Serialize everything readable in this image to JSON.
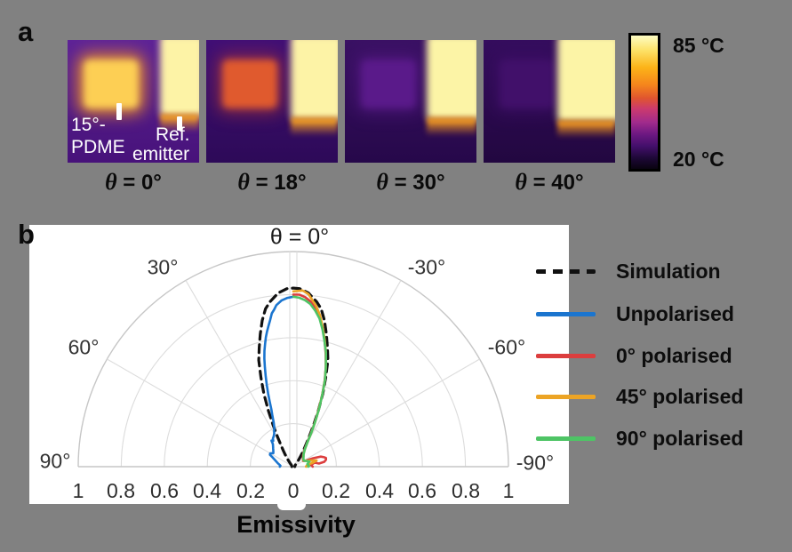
{
  "panel_a": {
    "label": "a",
    "annotations": {
      "pdme_line1": "15°-",
      "pdme_line2": "PDME",
      "ref_line1": "Ref.",
      "ref_line2": "emitter"
    },
    "colorbar": {
      "max_label": "85 °C",
      "min_label": "20 °C"
    },
    "images": [
      {
        "theta_label": "θ = 0°",
        "colors": {
          "bg_top": "#5e2397",
          "bg_bot": "#47127a",
          "sq": "#fdcf54",
          "sq_glow": "rgba(243,146,33,0.85)",
          "ref": "#fdf3a6",
          "band": "#f29a1e",
          "ref_left": "70%",
          "ref_h": "66%"
        }
      },
      {
        "theta_label": "θ = 18°",
        "colors": {
          "bg_top": "#410f76",
          "bg_bot": "#2d0a58",
          "sq": "#e05a2e",
          "sq_glow": "rgba(190,60,45,0.5)",
          "ref": "#fdf3a6",
          "band": "#f29a1e",
          "ref_left": "64%",
          "ref_h": "69%"
        }
      },
      {
        "theta_label": "θ = 30°",
        "colors": {
          "bg_top": "#3a1164",
          "bg_bot": "#26084a",
          "sq": "#5a1a8a",
          "sq_glow": "rgba(90,26,138,0.45)",
          "ref": "#fcf4a6",
          "band": "#f0941c",
          "ref_left": "62%",
          "ref_h": "69%"
        }
      },
      {
        "theta_label": "θ = 40°",
        "colors": {
          "bg_top": "#350d5e",
          "bg_bot": "#220740",
          "sq": "#41106a",
          "sq_glow": "rgba(65,16,106,0.45)",
          "ref": "#fcf4a6",
          "band": "#f0941c",
          "ref_left": "56%",
          "ref_h": "71%"
        }
      }
    ]
  },
  "panel_b": {
    "label": "b"
  },
  "chart_data": {
    "type": "line",
    "subtype": "half-polar",
    "title": "θ = 0°",
    "xlabel": "Emissivity",
    "r_max": 1,
    "grid": true,
    "grid_radii": [
      0.2,
      0.4,
      0.6,
      0.8,
      1.0
    ],
    "angle_grid_deg": [
      30,
      60
    ],
    "angle_labels": [
      "30°",
      "-30°",
      "60°",
      "-60°",
      "90°",
      "-90°"
    ],
    "radial_tick_labels": [
      "1",
      "0.8",
      "0.6",
      "0.4",
      "0.2",
      "0",
      "0.2",
      "0.4",
      "0.6",
      "0.8",
      "1"
    ],
    "legend_position": "right",
    "series": [
      {
        "name": "Simulation",
        "color": "#111111",
        "style": "dashed",
        "side": "both",
        "points": [
          [
            0,
            0.83
          ],
          [
            2,
            0.828
          ],
          [
            5,
            0.81
          ],
          [
            8,
            0.775
          ],
          [
            10,
            0.745
          ],
          [
            12,
            0.695
          ],
          [
            14,
            0.635
          ],
          [
            16,
            0.575
          ],
          [
            18,
            0.52
          ],
          [
            20,
            0.44
          ],
          [
            22,
            0.365
          ],
          [
            24,
            0.285
          ],
          [
            26,
            0.215
          ],
          [
            28,
            0.155
          ],
          [
            30,
            0.115
          ],
          [
            32,
            0.088
          ],
          [
            34,
            0.068
          ],
          [
            36,
            0.052
          ],
          [
            38,
            0.04
          ],
          [
            40,
            0.03
          ],
          [
            44,
            0.02
          ],
          [
            48,
            0.014
          ],
          [
            55,
            0.01
          ],
          [
            65,
            0.008
          ],
          [
            75,
            0.007
          ],
          [
            90,
            0.007
          ]
        ]
      },
      {
        "name": "Unpolarised",
        "color": "#1b75cf",
        "style": "solid",
        "side": "left",
        "points": [
          [
            0,
            0.79
          ],
          [
            2,
            0.785
          ],
          [
            4,
            0.775
          ],
          [
            6,
            0.755
          ],
          [
            7,
            0.735
          ],
          [
            8,
            0.72
          ],
          [
            9,
            0.69
          ],
          [
            10,
            0.665
          ],
          [
            11,
            0.64
          ],
          [
            12,
            0.615
          ],
          [
            13,
            0.585
          ],
          [
            14,
            0.555
          ],
          [
            15,
            0.52
          ],
          [
            16,
            0.48
          ],
          [
            17,
            0.44
          ],
          [
            18,
            0.4
          ],
          [
            19,
            0.36
          ],
          [
            20,
            0.32
          ],
          [
            21,
            0.285
          ],
          [
            22,
            0.262
          ],
          [
            23,
            0.242
          ],
          [
            24,
            0.225
          ],
          [
            26,
            0.202
          ],
          [
            28,
            0.19
          ],
          [
            30,
            0.178
          ],
          [
            33,
            0.168
          ],
          [
            36,
            0.162
          ],
          [
            38,
            0.152
          ],
          [
            40,
            0.158
          ],
          [
            42,
            0.142
          ],
          [
            45,
            0.133
          ],
          [
            48,
            0.126
          ],
          [
            52,
            0.118
          ],
          [
            56,
            0.112
          ],
          [
            60,
            0.124
          ],
          [
            63,
            0.122
          ],
          [
            66,
            0.105
          ],
          [
            70,
            0.091
          ],
          [
            74,
            0.081
          ],
          [
            78,
            0.073
          ],
          [
            82,
            0.065
          ],
          [
            86,
            0.06
          ],
          [
            90,
            0.063
          ]
        ]
      },
      {
        "name": "0° polarised",
        "color": "#dc3e3e",
        "style": "solid",
        "side": "right",
        "points": [
          [
            0,
            0.8
          ],
          [
            2,
            0.8
          ],
          [
            4,
            0.79
          ],
          [
            6,
            0.772
          ],
          [
            8,
            0.742
          ],
          [
            10,
            0.71
          ],
          [
            12,
            0.657
          ],
          [
            14,
            0.602
          ],
          [
            16,
            0.546
          ],
          [
            18,
            0.49
          ],
          [
            20,
            0.426
          ],
          [
            22,
            0.357
          ],
          [
            24,
            0.29
          ],
          [
            26,
            0.226
          ],
          [
            28,
            0.172
          ],
          [
            30,
            0.128
          ],
          [
            33,
            0.098
          ],
          [
            36,
            0.082
          ],
          [
            40,
            0.071
          ],
          [
            45,
            0.063
          ],
          [
            50,
            0.058
          ],
          [
            55,
            0.055
          ],
          [
            60,
            0.053
          ],
          [
            64,
            0.062
          ],
          [
            67,
            0.1
          ],
          [
            70,
            0.136
          ],
          [
            73,
            0.15
          ],
          [
            75,
            0.157
          ],
          [
            78,
            0.155
          ],
          [
            81,
            0.146
          ],
          [
            83,
            0.12
          ],
          [
            79,
            0.1
          ],
          [
            85,
            0.083
          ],
          [
            90,
            0.09
          ]
        ]
      },
      {
        "name": "45° polarised",
        "color": "#eca425",
        "style": "solid",
        "side": "right",
        "points": [
          [
            0,
            0.815
          ],
          [
            3,
            0.82
          ],
          [
            5,
            0.805
          ],
          [
            8,
            0.756
          ],
          [
            10,
            0.715
          ],
          [
            12,
            0.66
          ],
          [
            14,
            0.605
          ],
          [
            16,
            0.55
          ],
          [
            18,
            0.49
          ],
          [
            20,
            0.43
          ],
          [
            22,
            0.36
          ],
          [
            24,
            0.29
          ],
          [
            26,
            0.23
          ],
          [
            28,
            0.176
          ],
          [
            30,
            0.132
          ],
          [
            33,
            0.101
          ],
          [
            36,
            0.086
          ],
          [
            40,
            0.073
          ],
          [
            45,
            0.066
          ],
          [
            50,
            0.061
          ],
          [
            55,
            0.057
          ],
          [
            60,
            0.055
          ],
          [
            64,
            0.063
          ],
          [
            68,
            0.073
          ],
          [
            72,
            0.092
          ],
          [
            75,
            0.112
          ],
          [
            78,
            0.096
          ],
          [
            81,
            0.077
          ],
          [
            84,
            0.066
          ],
          [
            87,
            0.061
          ],
          [
            90,
            0.059
          ]
        ]
      },
      {
        "name": "90° polarised",
        "color": "#4ec465",
        "style": "solid",
        "side": "right",
        "points": [
          [
            0,
            0.79
          ],
          [
            2,
            0.786
          ],
          [
            4,
            0.776
          ],
          [
            6,
            0.76
          ],
          [
            8,
            0.732
          ],
          [
            10,
            0.7
          ],
          [
            12,
            0.652
          ],
          [
            14,
            0.6
          ],
          [
            16,
            0.55
          ],
          [
            18,
            0.49
          ],
          [
            20,
            0.43
          ],
          [
            22,
            0.36
          ],
          [
            24,
            0.295
          ],
          [
            26,
            0.23
          ],
          [
            28,
            0.176
          ],
          [
            30,
            0.131
          ],
          [
            33,
            0.1
          ],
          [
            36,
            0.086
          ],
          [
            40,
            0.074
          ],
          [
            45,
            0.067
          ],
          [
            50,
            0.061
          ],
          [
            55,
            0.058
          ],
          [
            60,
            0.056
          ],
          [
            64,
            0.061
          ],
          [
            68,
            0.069
          ],
          [
            72,
            0.079
          ],
          [
            76,
            0.071
          ],
          [
            80,
            0.066
          ],
          [
            84,
            0.071
          ],
          [
            88,
            0.073
          ],
          [
            90,
            0.069
          ]
        ]
      }
    ]
  }
}
